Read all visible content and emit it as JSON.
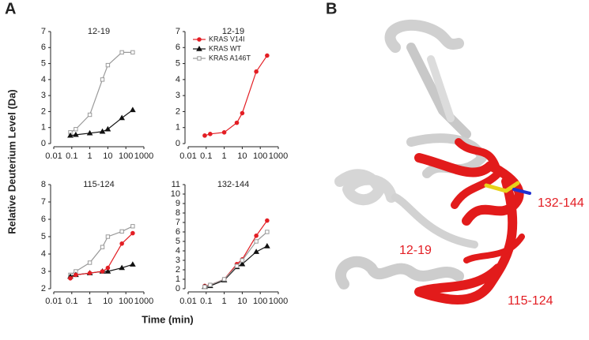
{
  "panel_labels": [
    "A",
    "B"
  ],
  "axis_labels": {
    "y": "Relative Deuterium Level (Da)",
    "x": "Time (min)"
  },
  "structure_labels": [
    "12-19",
    "132-144",
    "115-124"
  ],
  "chart_data": [
    {
      "type": "line",
      "title": "12-19",
      "xscale": "log",
      "xlim": [
        0.01,
        1000
      ],
      "xticks": [
        0.01,
        0.1,
        1,
        10,
        100,
        1000
      ],
      "ylim": [
        0,
        7
      ],
      "yticks": [
        0,
        1,
        2,
        3,
        4,
        5,
        6,
        7
      ],
      "x": [
        0.083,
        0.167,
        1,
        5,
        10,
        60,
        240
      ],
      "series": [
        {
          "color": "#9a9a9a",
          "marker": "square",
          "values": [
            0.7,
            0.9,
            1.8,
            4.0,
            4.9,
            5.7,
            5.7
          ]
        },
        {
          "color": "#111111",
          "marker": "triangle",
          "values": [
            0.5,
            0.55,
            0.65,
            0.75,
            0.9,
            1.6,
            2.1
          ]
        }
      ]
    },
    {
      "type": "line",
      "title": "12-19",
      "xscale": "log",
      "xlim": [
        0.01,
        1000
      ],
      "xticks": [
        0.01,
        0.1,
        1,
        10,
        100,
        1000
      ],
      "ylim": [
        0,
        7
      ],
      "yticks": [
        0,
        1,
        2,
        3,
        4,
        5,
        6,
        7
      ],
      "legend": "upper-left",
      "x": [
        0.083,
        0.167,
        1,
        5,
        10,
        60,
        240
      ],
      "series": [
        {
          "color": "#e31e24",
          "marker": "circle",
          "values": [
            0.5,
            0.6,
            0.7,
            1.3,
            1.9,
            4.5,
            5.5
          ]
        }
      ]
    },
    {
      "type": "line",
      "title": "115-124",
      "xscale": "log",
      "xlim": [
        0.01,
        1000
      ],
      "xticks": [
        0.01,
        0.1,
        1,
        10,
        100,
        1000
      ],
      "ylim": [
        2,
        8
      ],
      "yticks": [
        2,
        3,
        4,
        5,
        6,
        7,
        8
      ],
      "x": [
        0.083,
        0.167,
        1,
        5,
        10,
        60,
        240
      ],
      "series": [
        {
          "color": "#9a9a9a",
          "marker": "square",
          "values": [
            2.8,
            3.0,
            3.5,
            4.4,
            5.0,
            5.3,
            5.6
          ]
        },
        {
          "color": "#111111",
          "marker": "triangle",
          "values": [
            2.7,
            2.8,
            2.9,
            3.0,
            3.0,
            3.2,
            3.4
          ]
        },
        {
          "color": "#e31e24",
          "marker": "circle",
          "values": [
            2.6,
            2.8,
            2.9,
            3.0,
            3.2,
            4.6,
            5.2
          ]
        }
      ]
    },
    {
      "type": "line",
      "title": "132-144",
      "xscale": "log",
      "xlim": [
        0.01,
        1000
      ],
      "xticks": [
        0.01,
        0.1,
        1,
        10,
        100,
        1000
      ],
      "ylim": [
        0,
        11
      ],
      "yticks": [
        0,
        1,
        2,
        3,
        4,
        5,
        6,
        7,
        8,
        9,
        10,
        11
      ],
      "x": [
        0.083,
        0.167,
        1,
        5,
        10,
        60,
        240
      ],
      "series": [
        {
          "name": "KRAS V14I",
          "color": "#e31e24",
          "marker": "circle",
          "values": [
            0.3,
            0.4,
            1.0,
            2.6,
            3.1,
            5.6,
            7.2
          ]
        },
        {
          "name": "KRAS WT",
          "color": "#111111",
          "marker": "triangle",
          "values": [
            0.2,
            0.3,
            0.9,
            2.3,
            2.6,
            3.9,
            4.5
          ]
        },
        {
          "name": "KRAS A146T",
          "color": "#9a9a9a",
          "marker": "square",
          "values": [
            0.2,
            0.4,
            1.0,
            2.4,
            3.0,
            5.0,
            6.0
          ]
        }
      ]
    }
  ]
}
